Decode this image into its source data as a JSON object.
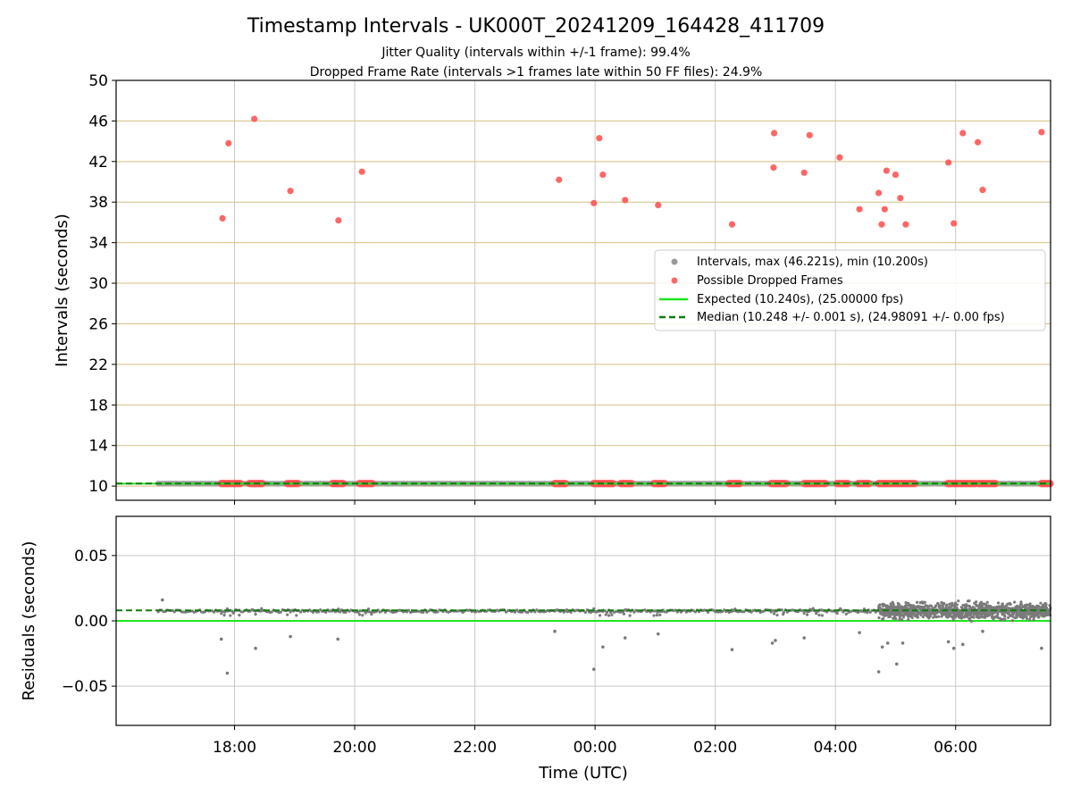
{
  "chart_data": {
    "type": "scatter",
    "title": "Timestamp Intervals - UK000T_20241209_164428_411709",
    "subtitle_lines": [
      "Jitter Quality (intervals within +/-1 frame): 99.4%",
      "Dropped Frame Rate (intervals >1 frames late within 50 FF files): 24.9%"
    ],
    "xlabel": "Time (UTC)",
    "x_tick_labels": [
      "18:00",
      "20:00",
      "22:00",
      "00:00",
      "02:00",
      "04:00",
      "06:00"
    ],
    "x_ticks_hours": [
      18,
      20,
      22,
      24,
      26,
      28,
      30
    ],
    "xlim_hours": [
      16.03,
      31.58
    ],
    "grid": true,
    "top_panel": {
      "ylabel": "Intervals (seconds)",
      "ylim": [
        8.6,
        50
      ],
      "y_ticks": [
        10,
        14,
        18,
        22,
        26,
        30,
        34,
        38,
        42,
        46,
        50
      ],
      "gridline_color": "#d4bf82",
      "expected_interval": 10.24,
      "median_interval": 10.248,
      "intervals_x_range_hours": [
        16.73,
        31.58
      ],
      "dropped_frames_high": [
        {
          "x": 17.8,
          "y": 36.4
        },
        {
          "x": 17.9,
          "y": 43.8
        },
        {
          "x": 18.33,
          "y": 46.2
        },
        {
          "x": 18.93,
          "y": 39.1
        },
        {
          "x": 19.73,
          "y": 36.2
        },
        {
          "x": 20.12,
          "y": 41.0
        },
        {
          "x": 23.4,
          "y": 40.2
        },
        {
          "x": 23.98,
          "y": 37.9
        },
        {
          "x": 24.07,
          "y": 44.3
        },
        {
          "x": 24.13,
          "y": 40.7
        },
        {
          "x": 24.5,
          "y": 38.2
        },
        {
          "x": 25.05,
          "y": 37.7
        },
        {
          "x": 26.28,
          "y": 35.8
        },
        {
          "x": 26.97,
          "y": 41.4
        },
        {
          "x": 26.98,
          "y": 44.8
        },
        {
          "x": 27.48,
          "y": 40.9
        },
        {
          "x": 27.57,
          "y": 44.6
        },
        {
          "x": 28.07,
          "y": 42.4
        },
        {
          "x": 28.4,
          "y": 37.3
        },
        {
          "x": 28.72,
          "y": 38.9
        },
        {
          "x": 28.77,
          "y": 35.8
        },
        {
          "x": 28.82,
          "y": 37.3
        },
        {
          "x": 28.85,
          "y": 41.1
        },
        {
          "x": 29.0,
          "y": 40.7
        },
        {
          "x": 29.08,
          "y": 38.4
        },
        {
          "x": 29.17,
          "y": 35.8
        },
        {
          "x": 29.88,
          "y": 41.9
        },
        {
          "x": 29.97,
          "y": 35.9
        },
        {
          "x": 30.12,
          "y": 44.8
        },
        {
          "x": 30.37,
          "y": 43.9
        },
        {
          "x": 30.45,
          "y": 39.2
        },
        {
          "x": 31.43,
          "y": 44.9
        }
      ],
      "dropped_frames_baseline_ranges_hours": [
        [
          17.78,
          18.1
        ],
        [
          18.25,
          18.48
        ],
        [
          18.88,
          19.08
        ],
        [
          19.63,
          19.82
        ],
        [
          20.08,
          20.3
        ],
        [
          23.33,
          23.53
        ],
        [
          23.98,
          24.3
        ],
        [
          24.43,
          24.63
        ],
        [
          24.98,
          25.18
        ],
        [
          26.23,
          26.43
        ],
        [
          26.93,
          27.18
        ],
        [
          27.48,
          27.83
        ],
        [
          28.03,
          28.23
        ],
        [
          28.38,
          28.58
        ],
        [
          28.72,
          29.33
        ],
        [
          29.87,
          30.33
        ],
        [
          30.38,
          30.68
        ],
        [
          31.43,
          31.58
        ]
      ],
      "legend": {
        "position": "right",
        "entries": [
          {
            "label": "Intervals, max (46.221s), min (10.200s)",
            "style": "gray-dot"
          },
          {
            "label": "Possible Dropped Frames",
            "style": "red-dot"
          },
          {
            "label": "Expected (10.240s), (25.00000 fps)",
            "style": "green-line"
          },
          {
            "label": "Median (10.248 +/- 0.001 s), (24.98091 +/- 0.00 fps)",
            "style": "darkgreen-dashed"
          }
        ]
      }
    },
    "bottom_panel": {
      "ylabel": "Residuals (seconds)",
      "ylim": [
        -0.08,
        0.08
      ],
      "y_ticks": [
        0.05,
        0.0,
        -0.05
      ],
      "y_tick_labels": [
        "0.05",
        "0.00",
        "−0.05"
      ],
      "expected_line": 0.0,
      "median_line": 0.008,
      "baseline_residual": 0.0075,
      "residual_outliers": [
        {
          "x": 16.8,
          "y": 0.016
        },
        {
          "x": 17.78,
          "y": -0.014
        },
        {
          "x": 17.88,
          "y": -0.04
        },
        {
          "x": 18.35,
          "y": -0.021
        },
        {
          "x": 18.93,
          "y": -0.012
        },
        {
          "x": 19.72,
          "y": -0.014
        },
        {
          "x": 23.33,
          "y": -0.008
        },
        {
          "x": 23.98,
          "y": -0.037
        },
        {
          "x": 24.13,
          "y": -0.02
        },
        {
          "x": 24.5,
          "y": -0.013
        },
        {
          "x": 25.05,
          "y": -0.01
        },
        {
          "x": 26.28,
          "y": -0.022
        },
        {
          "x": 26.95,
          "y": -0.017
        },
        {
          "x": 27.0,
          "y": -0.015
        },
        {
          "x": 27.48,
          "y": -0.013
        },
        {
          "x": 28.4,
          "y": -0.009
        },
        {
          "x": 28.72,
          "y": -0.039
        },
        {
          "x": 28.78,
          "y": -0.02
        },
        {
          "x": 28.87,
          "y": -0.017
        },
        {
          "x": 29.02,
          "y": -0.033
        },
        {
          "x": 29.12,
          "y": -0.017
        },
        {
          "x": 29.88,
          "y": -0.016
        },
        {
          "x": 29.97,
          "y": -0.021
        },
        {
          "x": 30.12,
          "y": -0.018
        },
        {
          "x": 30.45,
          "y": -0.008
        },
        {
          "x": 31.43,
          "y": -0.021
        }
      ],
      "dense_cluster_hours": [
        28.72,
        31.58
      ]
    },
    "colors": {
      "expected": "#1ee61e",
      "median": "#107a10",
      "intervals": "#9a9a9a",
      "dropped": "#ff4b4b",
      "residuals": "#7a7a7a",
      "grid": "#c8c8c8"
    }
  }
}
